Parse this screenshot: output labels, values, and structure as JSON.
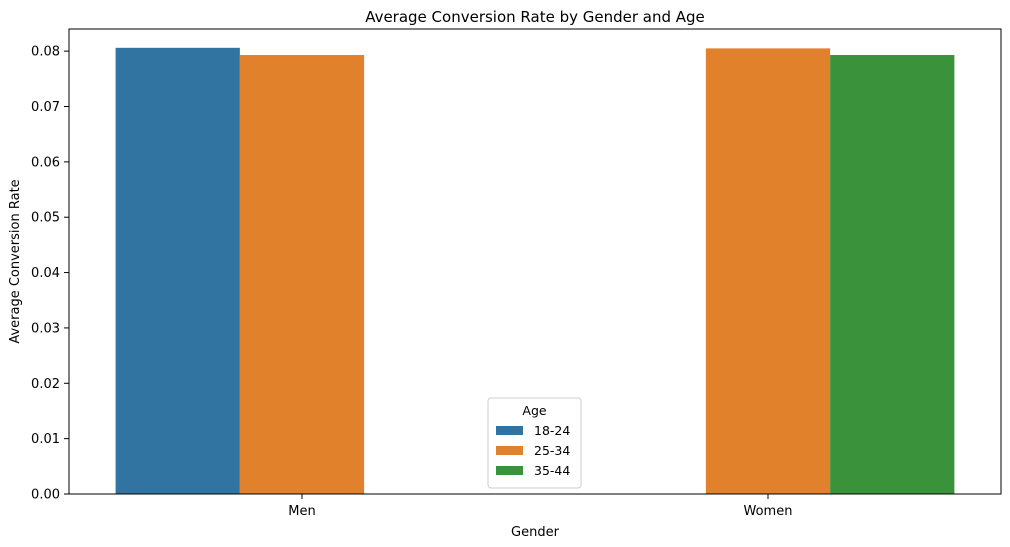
{
  "chart_data": {
    "type": "bar",
    "title": "Average Conversion Rate by Gender and Age",
    "xlabel": "Gender",
    "ylabel": "Average Conversion Rate",
    "categories": [
      "Men",
      "Women"
    ],
    "ylim": [
      0,
      0.084
    ],
    "yticks": [
      0.0,
      0.01,
      0.02,
      0.03,
      0.04,
      0.05,
      0.06,
      0.07,
      0.08
    ],
    "ytick_labels": [
      "0.00",
      "0.01",
      "0.02",
      "0.03",
      "0.04",
      "0.05",
      "0.06",
      "0.07",
      "0.08"
    ],
    "grid": false,
    "legend": {
      "title": "Age",
      "placement": "bottom-center"
    },
    "series": [
      {
        "name": "18-24",
        "color": "#3274a1",
        "values": [
          0.0806,
          null
        ]
      },
      {
        "name": "25-34",
        "color": "#e1812c",
        "values": [
          0.0793,
          0.0805
        ]
      },
      {
        "name": "35-44",
        "color": "#3a923a",
        "values": [
          null,
          0.0793
        ]
      }
    ]
  }
}
